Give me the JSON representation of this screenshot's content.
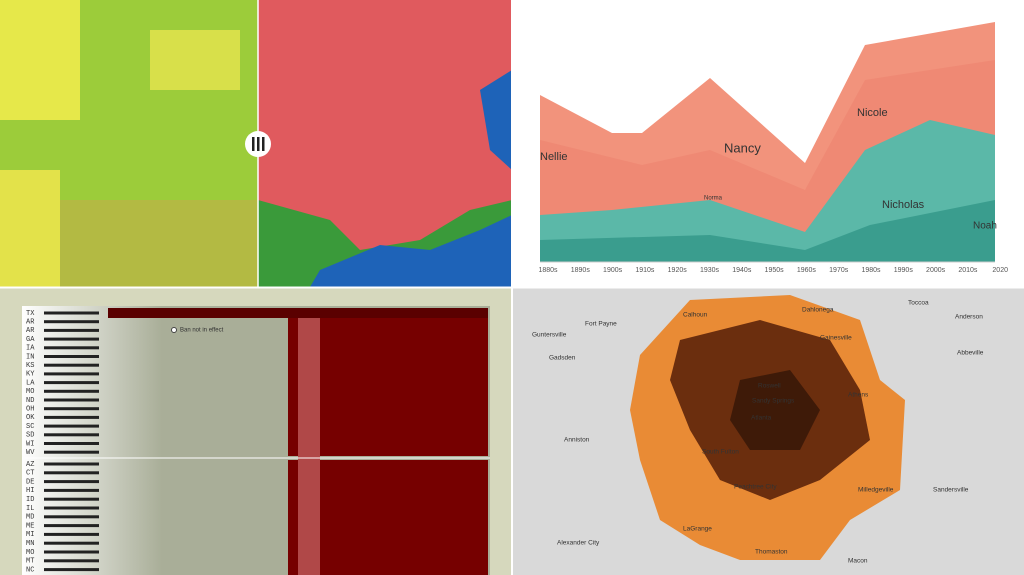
{
  "stream_graph": {
    "names": [
      "Nellie",
      "Nancy",
      "Nicole",
      "Nicholas",
      "Noah",
      "Norma"
    ],
    "x_axis": [
      "1880s",
      "1890s",
      "1900s",
      "1910s",
      "1920s",
      "1930s",
      "1940s",
      "1950s",
      "1960s",
      "1970s",
      "1980s",
      "1990s",
      "2000s",
      "2010s",
      "2020"
    ]
  },
  "state_chart": {
    "note": "Ban not in effect",
    "states_group_1": [
      "TX",
      "AR",
      "AR",
      "GA",
      "IA",
      "IN",
      "KS",
      "KY",
      "LA",
      "MO",
      "ND",
      "OH",
      "OK",
      "SC",
      "SD",
      "WI",
      "WV"
    ],
    "states_group_2": [
      "AZ",
      "CT",
      "DE",
      "HI",
      "ID",
      "IL",
      "MD",
      "ME",
      "MI",
      "MN",
      "MO",
      "MT",
      "NC"
    ]
  },
  "georgia_map": {
    "places": [
      "Fort Payne",
      "Calhoun",
      "Dahlonega",
      "Toccoa",
      "Anderson",
      "Guntersville",
      "Gainesville",
      "Abbeville",
      "Gadsden",
      "Roswell",
      "Athens",
      "Sandy Springs",
      "Anniston",
      "Atlanta",
      "South Fulton",
      "Peachtree City",
      "Milledgeville",
      "Sandersville",
      "LaGrange",
      "Alexander City",
      "Thomaston",
      "Macon"
    ]
  }
}
